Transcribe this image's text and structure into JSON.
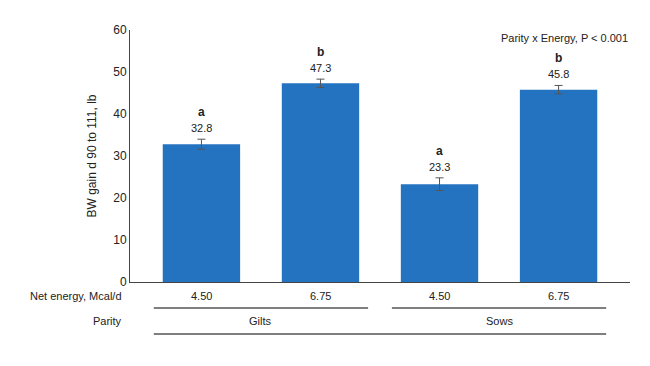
{
  "chart_data": {
    "type": "bar",
    "categories": [
      "4.50",
      "6.75",
      "4.50",
      "6.75"
    ],
    "groups": [
      "Gilts",
      "Gilts",
      "Sows",
      "Sows"
    ],
    "values": [
      32.8,
      47.3,
      23.3,
      45.8
    ],
    "errors": [
      1.2,
      1.0,
      1.5,
      1.0
    ],
    "superscripts": [
      "a",
      "b",
      "a",
      "b"
    ],
    "data_labels": true,
    "color": "#2473C0",
    "ylabel": "BW gain d 90 to 111, lb",
    "xlabel": "Net energy, Mcal/d",
    "group_label": "Parity",
    "annotation": "Parity x Energy, P < 0.001",
    "ylim": [
      0,
      60
    ],
    "yticks": [
      0,
      10,
      20,
      30,
      40,
      50,
      60
    ],
    "grid": false
  }
}
